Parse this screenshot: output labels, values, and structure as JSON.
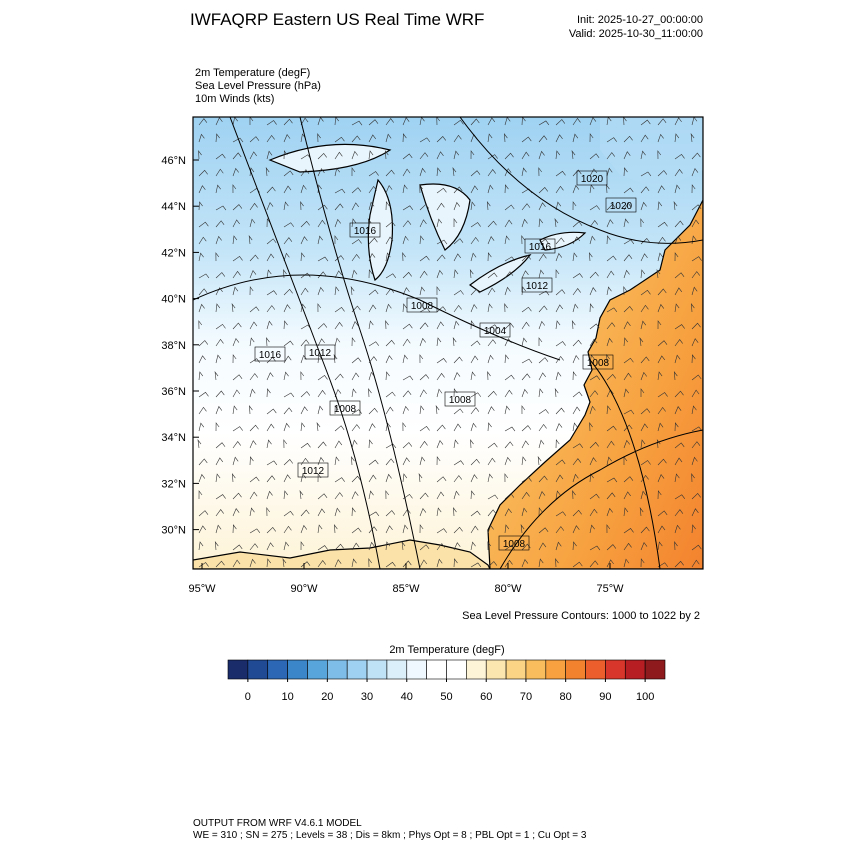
{
  "header": {
    "title": "IWFAQRP Eastern US Real Time WRF",
    "init": "Init: 2025-10-27_00:00:00",
    "valid": "Valid: 2025-10-30_11:00:00"
  },
  "fields": [
    "2m Temperature   (degF)",
    "Sea Level Pressure   (hPa)",
    "10m Winds   (kts)"
  ],
  "map": {
    "lat_ticks": [
      {
        "value": 46,
        "label": "46°N"
      },
      {
        "value": 44,
        "label": "44°N"
      },
      {
        "value": 42,
        "label": "42°N"
      },
      {
        "value": 40,
        "label": "40°N"
      },
      {
        "value": 38,
        "label": "38°N"
      },
      {
        "value": 36,
        "label": "36°N"
      },
      {
        "value": 34,
        "label": "34°N"
      },
      {
        "value": 32,
        "label": "32°N"
      },
      {
        "value": 30,
        "label": "30°N"
      }
    ],
    "lon_ticks": [
      {
        "value": -95,
        "label": "95°W"
      },
      {
        "value": -90,
        "label": "90°W"
      },
      {
        "value": -85,
        "label": "85°W"
      },
      {
        "value": -80,
        "label": "80°W"
      },
      {
        "value": -75,
        "label": "75°W"
      }
    ],
    "contour_labels": [
      "1020",
      "1020",
      "1016",
      "1016",
      "1012",
      "1008",
      "1004",
      "1016",
      "1012",
      "1008",
      "1008",
      "1008",
      "1012",
      "1008"
    ],
    "contour_note": "Sea Level Pressure Contours: 1000 to 1022 by 2"
  },
  "colorbar": {
    "title": "2m Temperature  (degF)",
    "range": [
      -5,
      105
    ],
    "ticks": [
      0,
      10,
      20,
      30,
      40,
      50,
      60,
      70,
      80,
      90,
      100
    ],
    "colors": [
      "#1b2c6b",
      "#214a94",
      "#2b67b4",
      "#3b86c8",
      "#58a5db",
      "#7dbde8",
      "#9fd2f2",
      "#bfe2f7",
      "#dbeffb",
      "#eef8fe",
      "#ffffff",
      "#ffffff",
      "#fdf3d6",
      "#fce6b0",
      "#fbd486",
      "#f9bd5d",
      "#f7a140",
      "#f3822e",
      "#ec5f2c",
      "#d8362a",
      "#b71e24",
      "#8f1a1d"
    ]
  },
  "footer": {
    "line1": "OUTPUT FROM WRF V4.6.1 MODEL",
    "line2": "WE = 310 ; SN = 275 ; Levels = 38 ; Dis = 8km ; Phys Opt = 8 ; PBL Opt = 1 ; Cu Opt = 3"
  }
}
